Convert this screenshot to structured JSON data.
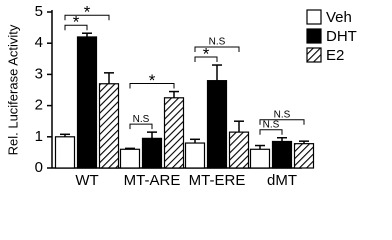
{
  "chart_data": {
    "type": "bar",
    "y_label": "Rel. Luciferase Activity",
    "categories": [
      "WT",
      "MT-ARE",
      "MT-ERE",
      "dMT"
    ],
    "series": [
      {
        "name": "Veh",
        "color": "#ffffff",
        "values": [
          1.0,
          0.6,
          0.8,
          0.6
        ],
        "errors": [
          0.08,
          0.03,
          0.12,
          0.12
        ]
      },
      {
        "name": "DHT",
        "color": "#000000",
        "values": [
          4.2,
          0.95,
          2.8,
          0.85
        ],
        "errors": [
          0.12,
          0.2,
          0.5,
          0.12
        ]
      },
      {
        "name": "E2",
        "color": "#000000",
        "hatch": true,
        "values": [
          2.7,
          2.25,
          1.15,
          0.78
        ],
        "errors": [
          0.35,
          0.2,
          0.35,
          0.08
        ]
      }
    ],
    "ylim": [
      0,
      5
    ],
    "yticks": [
      0,
      1,
      2,
      3,
      4,
      5
    ],
    "legend": "top-right",
    "annotations": [
      {
        "text": "*",
        "category": "WT",
        "between": [
          "Veh",
          "DHT"
        ]
      },
      {
        "text": "*",
        "category": "WT",
        "between": [
          "Veh",
          "E2"
        ]
      },
      {
        "text": "N.S",
        "category": "MT-ARE",
        "between": [
          "Veh",
          "DHT"
        ]
      },
      {
        "text": "*",
        "category": "MT-ARE",
        "between": [
          "Veh",
          "E2"
        ]
      },
      {
        "text": "*",
        "category": "MT-ERE",
        "between": [
          "Veh",
          "DHT"
        ]
      },
      {
        "text": "N.S",
        "category": "MT-ERE",
        "between": [
          "Veh",
          "E2"
        ]
      },
      {
        "text": "N.S",
        "category": "dMT",
        "between": [
          "Veh",
          "DHT"
        ]
      },
      {
        "text": "N.S",
        "category": "dMT",
        "between": [
          "Veh",
          "E2"
        ]
      }
    ]
  }
}
